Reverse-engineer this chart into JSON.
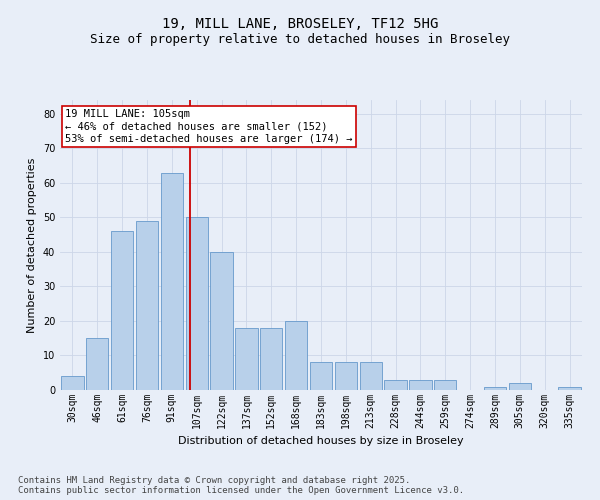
{
  "title": "19, MILL LANE, BROSELEY, TF12 5HG",
  "subtitle": "Size of property relative to detached houses in Broseley",
  "xlabel": "Distribution of detached houses by size in Broseley",
  "ylabel": "Number of detached properties",
  "categories": [
    "30sqm",
    "46sqm",
    "61sqm",
    "76sqm",
    "91sqm",
    "107sqm",
    "122sqm",
    "137sqm",
    "152sqm",
    "168sqm",
    "183sqm",
    "198sqm",
    "213sqm",
    "228sqm",
    "244sqm",
    "259sqm",
    "274sqm",
    "289sqm",
    "305sqm",
    "320sqm",
    "335sqm"
  ],
  "values": [
    4,
    15,
    46,
    49,
    63,
    50,
    40,
    18,
    18,
    20,
    8,
    8,
    8,
    3,
    3,
    3,
    0,
    1,
    2,
    0,
    1
  ],
  "bar_color": "#b8d0ea",
  "bar_edge_color": "#6699cc",
  "grid_color": "#ccd6e8",
  "background_color": "#e8eef8",
  "vline_color": "#cc0000",
  "vline_x": 4.72,
  "annotation_text": "19 MILL LANE: 105sqm\n← 46% of detached houses are smaller (152)\n53% of semi-detached houses are larger (174) →",
  "annotation_box_color": "#ffffff",
  "annotation_box_edge_color": "#cc0000",
  "ylim": [
    0,
    84
  ],
  "yticks": [
    0,
    10,
    20,
    30,
    40,
    50,
    60,
    70,
    80
  ],
  "footer": "Contains HM Land Registry data © Crown copyright and database right 2025.\nContains public sector information licensed under the Open Government Licence v3.0.",
  "title_fontsize": 10,
  "subtitle_fontsize": 9,
  "axis_label_fontsize": 8,
  "tick_fontsize": 7,
  "annotation_fontsize": 7.5,
  "footer_fontsize": 6.5
}
